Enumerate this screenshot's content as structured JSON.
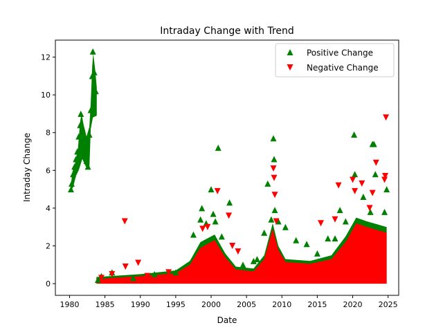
{
  "chart_data": {
    "type": "scatter",
    "title": "Intraday Change with Trend",
    "xlabel": "Date",
    "ylabel": "Intraday Change",
    "xlim": [
      1978.0,
      2026.5
    ],
    "ylim": [
      -0.62,
      12.9
    ],
    "grid": false,
    "legend_position": "top-right",
    "x_ticks": [
      1980,
      1985,
      1990,
      1995,
      2000,
      2005,
      2010,
      2015,
      2020,
      2025
    ],
    "y_ticks": [
      0,
      2,
      4,
      6,
      8,
      10,
      12
    ],
    "series": [
      {
        "name": "Positive Change",
        "marker": "triangle-up",
        "color": "#008000",
        "points": [
          [
            1980.2,
            5.0
          ],
          [
            1980.3,
            5.3
          ],
          [
            1980.5,
            5.8
          ],
          [
            1980.7,
            6.2
          ],
          [
            1980.9,
            6.6
          ],
          [
            1981.1,
            7.0
          ],
          [
            1981.3,
            7.8
          ],
          [
            1981.5,
            8.4
          ],
          [
            1981.6,
            9.0
          ],
          [
            1981.8,
            8.2
          ],
          [
            1982.0,
            7.5
          ],
          [
            1982.2,
            6.9
          ],
          [
            1982.4,
            6.5
          ],
          [
            1982.6,
            6.2
          ],
          [
            1982.8,
            7.9
          ],
          [
            1983.0,
            9.2
          ],
          [
            1983.2,
            11.0
          ],
          [
            1983.3,
            12.3
          ],
          [
            1983.5,
            11.2
          ],
          [
            1983.7,
            10.2
          ],
          [
            1984.0,
            0.2
          ],
          [
            1984.5,
            0.4
          ],
          [
            1986.0,
            0.6
          ],
          [
            1989.0,
            0.3
          ],
          [
            1992.0,
            0.5
          ],
          [
            1995.0,
            0.6
          ],
          [
            1997.5,
            2.6
          ],
          [
            1998.5,
            3.4
          ],
          [
            1998.7,
            4.0
          ],
          [
            1999.3,
            3.2
          ],
          [
            2000.0,
            5.0
          ],
          [
            2000.3,
            3.7
          ],
          [
            2000.6,
            3.3
          ],
          [
            2001.0,
            7.2
          ],
          [
            2001.5,
            2.5
          ],
          [
            2002.6,
            4.3
          ],
          [
            2004.5,
            1.0
          ],
          [
            2006.0,
            1.2
          ],
          [
            2006.5,
            1.3
          ],
          [
            2007.5,
            2.7
          ],
          [
            2008.0,
            5.3
          ],
          [
            2008.5,
            3.4
          ],
          [
            2008.8,
            7.7
          ],
          [
            2008.9,
            6.6
          ],
          [
            2009.0,
            3.9
          ],
          [
            2009.5,
            3.3
          ],
          [
            2010.5,
            3.0
          ],
          [
            2012.0,
            2.3
          ],
          [
            2013.5,
            2.1
          ],
          [
            2015.0,
            1.6
          ],
          [
            2016.5,
            2.4
          ],
          [
            2017.5,
            2.4
          ],
          [
            2018.2,
            3.9
          ],
          [
            2019.0,
            3.3
          ],
          [
            2020.2,
            7.9
          ],
          [
            2020.3,
            5.8
          ],
          [
            2021.5,
            4.6
          ],
          [
            2022.5,
            3.8
          ],
          [
            2022.8,
            7.4
          ],
          [
            2023.0,
            7.4
          ],
          [
            2023.2,
            5.8
          ],
          [
            2024.5,
            3.8
          ],
          [
            2024.8,
            5.0
          ]
        ]
      },
      {
        "name": "Negative Change",
        "marker": "triangle-down",
        "color": "#ff0000",
        "points": [
          [
            1984.5,
            0.3
          ],
          [
            1986.0,
            0.5
          ],
          [
            1987.8,
            3.3
          ],
          [
            1987.9,
            0.9
          ],
          [
            1989.7,
            1.1
          ],
          [
            1991.0,
            0.4
          ],
          [
            1994.0,
            0.6
          ],
          [
            1998.8,
            2.9
          ],
          [
            1999.5,
            3.0
          ],
          [
            2000.1,
            2.0
          ],
          [
            2000.9,
            4.9
          ],
          [
            2002.5,
            3.6
          ],
          [
            2003.0,
            2.0
          ],
          [
            2003.8,
            1.7
          ],
          [
            2008.8,
            6.1
          ],
          [
            2008.9,
            5.6
          ],
          [
            2009.0,
            4.7
          ],
          [
            2009.2,
            3.3
          ],
          [
            2015.5,
            3.2
          ],
          [
            2017.5,
            3.4
          ],
          [
            2018.0,
            5.2
          ],
          [
            2020.0,
            5.5
          ],
          [
            2020.3,
            4.9
          ],
          [
            2021.3,
            5.3
          ],
          [
            2022.4,
            4.0
          ],
          [
            2022.8,
            4.8
          ],
          [
            2023.3,
            6.4
          ],
          [
            2024.5,
            5.5
          ],
          [
            2024.6,
            5.7
          ],
          [
            2024.7,
            8.8
          ]
        ]
      }
    ]
  }
}
